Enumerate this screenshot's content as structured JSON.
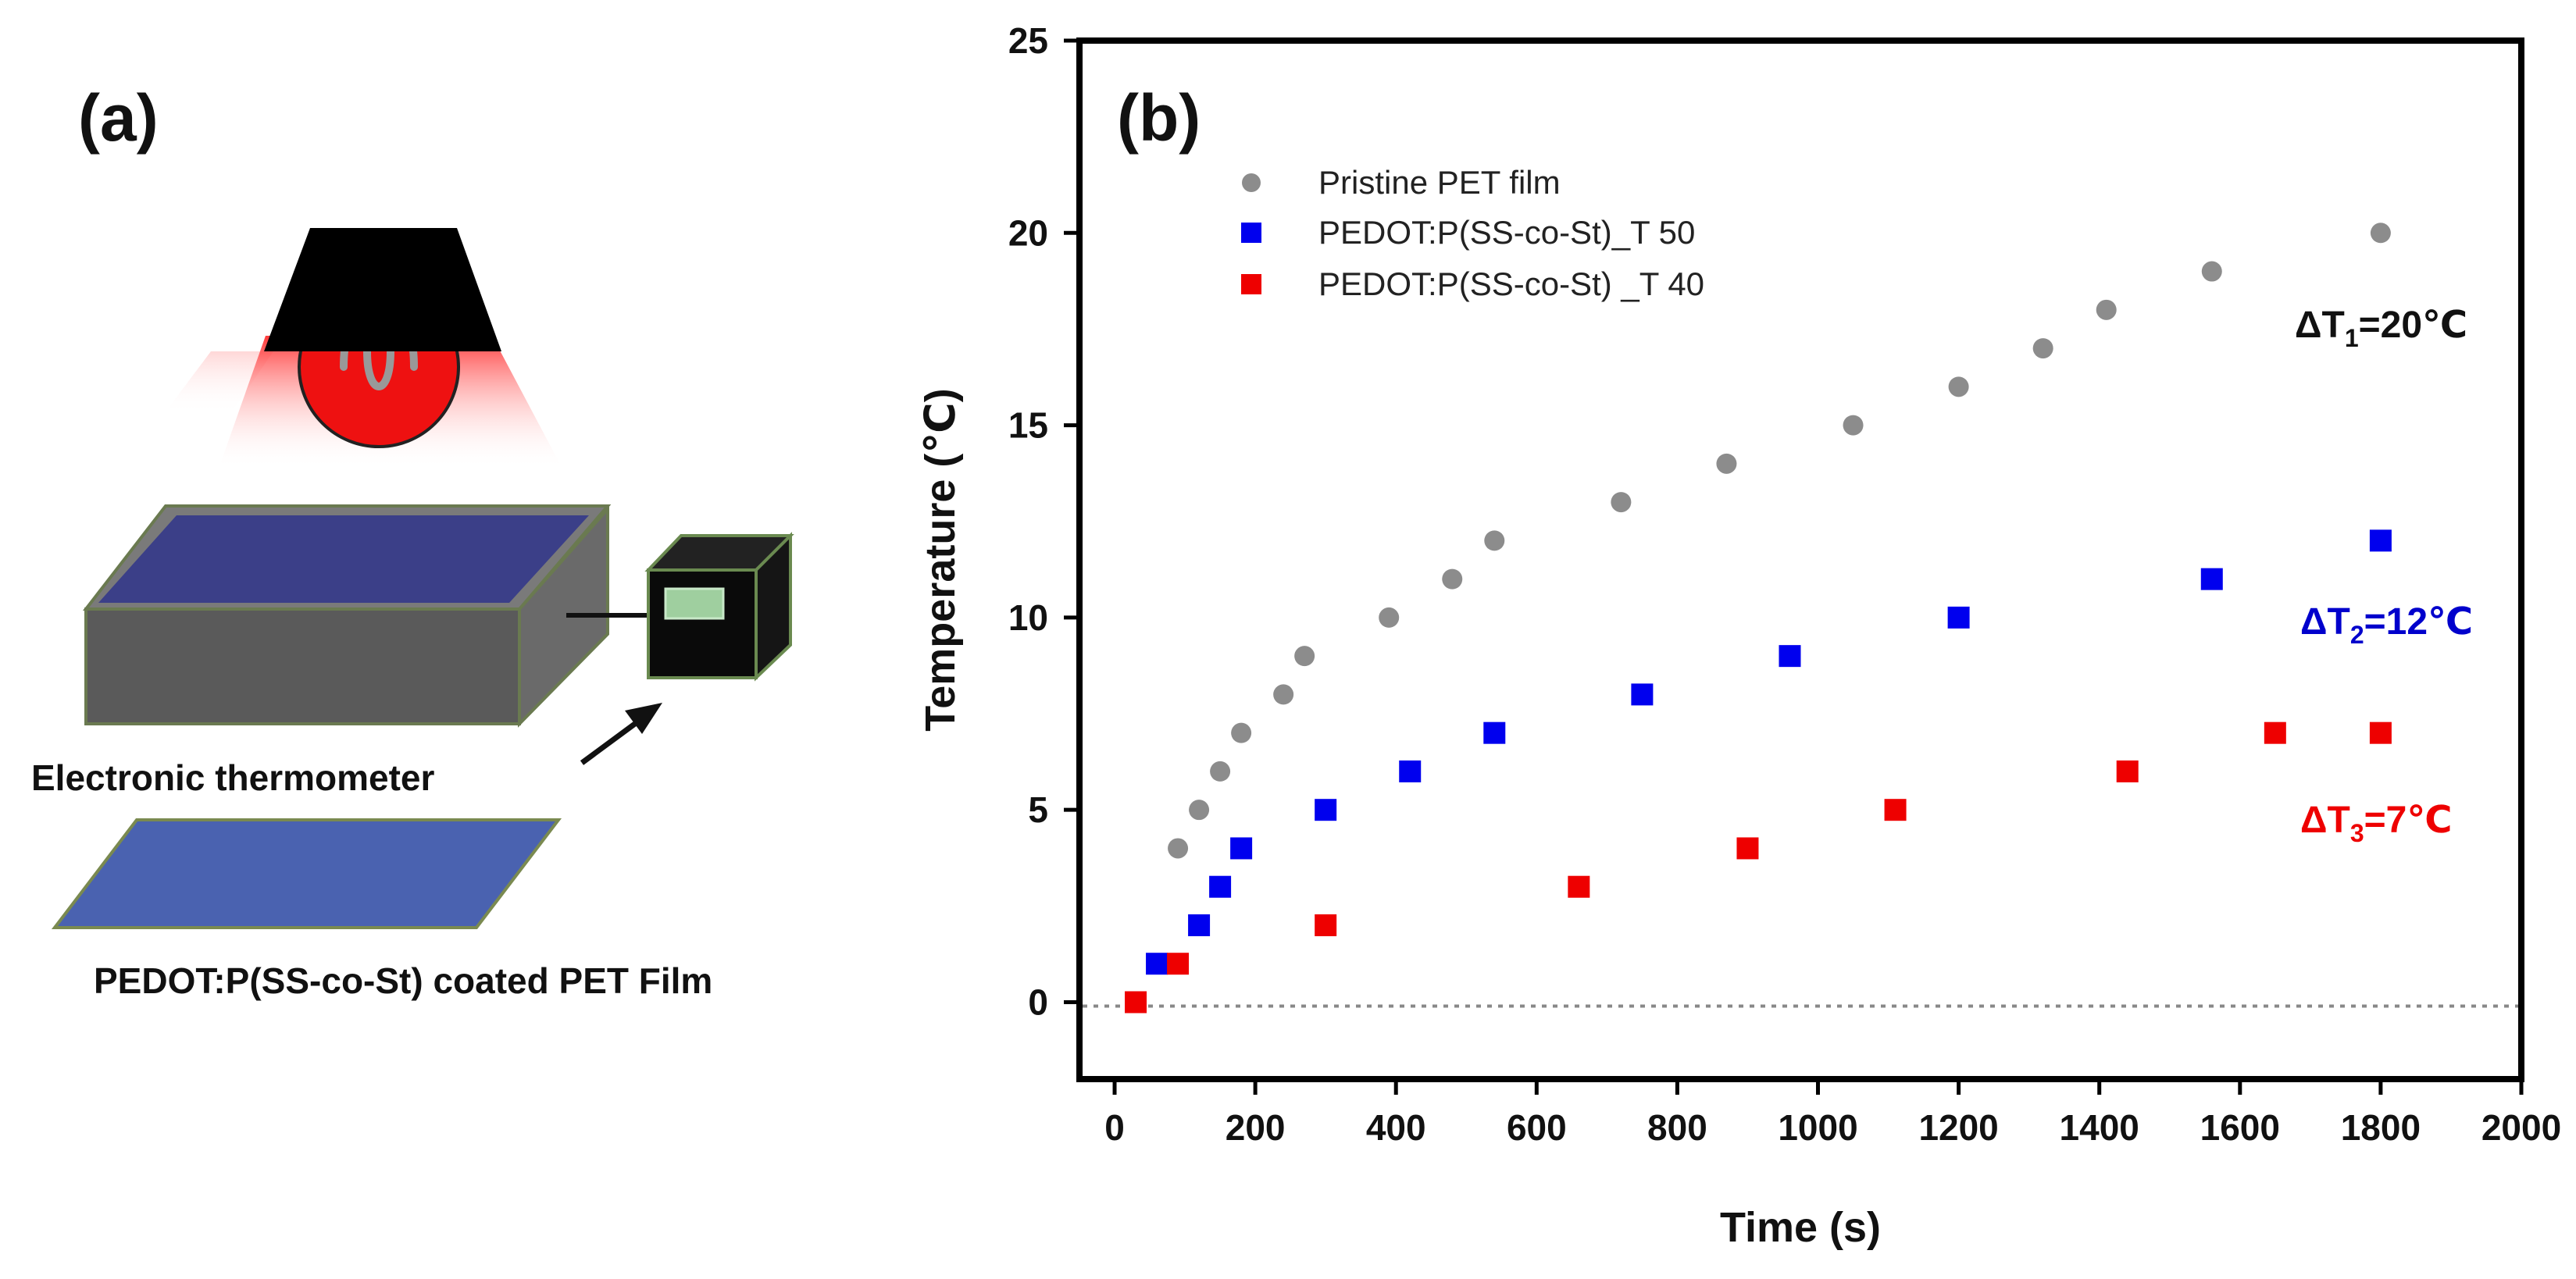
{
  "panel_a": {
    "label": "(a)",
    "thermometer_label": "Electronic thermometer",
    "film_label": "PEDOT:P(SS-co-St) coated PET Film"
  },
  "panel_b": {
    "label": "(b)"
  },
  "colors": {
    "pristine": "#8c8c8c",
    "t50": "#0000ee",
    "t40": "#ee0000",
    "delta1": "#111111",
    "delta2": "#0000cc",
    "delta3": "#ee0000",
    "lamp_red": "#ee1111",
    "box_top": "#3b3f88",
    "box_side": "#5a5a5a",
    "film": "#4a62b0"
  },
  "icons": [
    "lamp-icon",
    "heater-box-icon",
    "thermometer-icon",
    "arrow-icon",
    "film-icon"
  ],
  "chart_data": {
    "type": "scatter",
    "title": "",
    "xlabel": "Time (s)",
    "ylabel": "Temperature  (℃)",
    "xlim": [
      -50,
      2000
    ],
    "ylim": [
      -2,
      25
    ],
    "xticks": [
      0,
      200,
      400,
      600,
      800,
      1000,
      1200,
      1400,
      1600,
      1800,
      2000
    ],
    "yticks": [
      0,
      5,
      10,
      15,
      20,
      25
    ],
    "baseline": 0,
    "legend_position": "top-left",
    "series": [
      {
        "name": "Pristine PET film",
        "marker": "circle",
        "x": [
          90,
          120,
          150,
          180,
          240,
          270,
          390,
          480,
          540,
          720,
          870,
          1050,
          1200,
          1320,
          1410,
          1560,
          1800
        ],
        "y": [
          4,
          5,
          6,
          7,
          8,
          9,
          10,
          11,
          12,
          13,
          14,
          15,
          16,
          17,
          18,
          19,
          20
        ]
      },
      {
        "name": "PEDOT:P(SS-co-St)_T 50",
        "marker": "square",
        "x": [
          60,
          120,
          150,
          180,
          300,
          420,
          540,
          750,
          960,
          1200,
          1560,
          1800
        ],
        "y": [
          1,
          2,
          3,
          4,
          5,
          6,
          7,
          8,
          9,
          10,
          11,
          12
        ]
      },
      {
        "name": "PEDOT:P(SS-co-St) _T 40",
        "marker": "square",
        "x": [
          30,
          90,
          300,
          660,
          900,
          1110,
          1440,
          1650,
          1800
        ],
        "y": [
          0,
          1,
          2,
          3,
          4,
          5,
          6,
          7,
          7
        ]
      }
    ],
    "annotations": [
      {
        "sym": "ΔT",
        "sub": "1",
        "val": "=20℃"
      },
      {
        "sym": "ΔT",
        "sub": "2",
        "val": "=12℃"
      },
      {
        "sym": "ΔT",
        "sub": "3",
        "val": "=7℃"
      }
    ]
  }
}
